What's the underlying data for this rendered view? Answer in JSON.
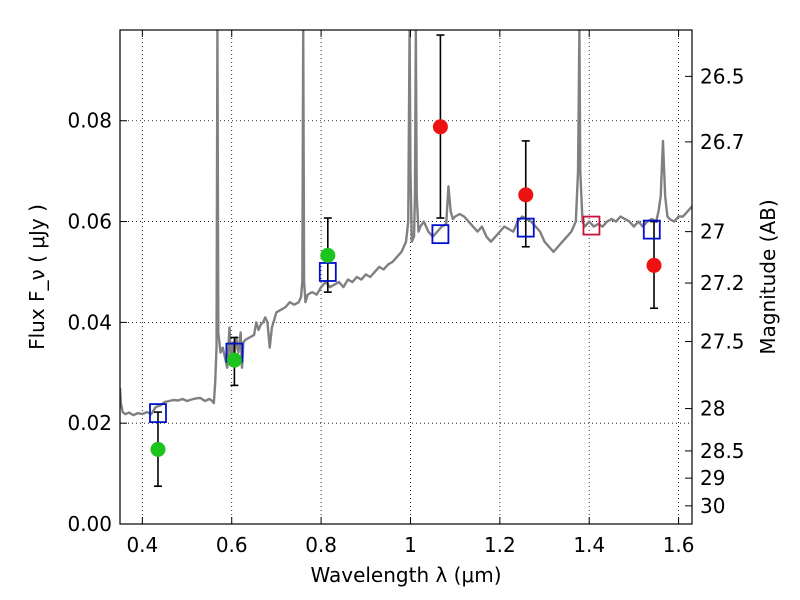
{
  "chart_data": {
    "type": "scatter",
    "xlabel": "Wavelength  λ (μm)",
    "ylabel": "Flux  F_ν ( μJy )",
    "ylabel_right": "Magnitude (AB)",
    "xlim": [
      0.35,
      1.63
    ],
    "ylim": [
      0.0,
      0.098
    ],
    "x_ticks": [
      {
        "value": 0.4,
        "label": "0.4"
      },
      {
        "value": 0.6,
        "label": "0.6"
      },
      {
        "value": 0.8,
        "label": "0.8"
      },
      {
        "value": 1.0,
        "label": "1"
      },
      {
        "value": 1.2,
        "label": "1.2"
      },
      {
        "value": 1.4,
        "label": "1.4"
      },
      {
        "value": 1.6,
        "label": "1.6"
      }
    ],
    "y_ticks": [
      {
        "value": 0.0,
        "label": "0.00"
      },
      {
        "value": 0.02,
        "label": "0.02"
      },
      {
        "value": 0.04,
        "label": "0.04"
      },
      {
        "value": 0.06,
        "label": "0.06"
      },
      {
        "value": 0.08,
        "label": "0.08"
      }
    ],
    "mag_ticks": [
      {
        "value": 0.0888,
        "label": "26.5"
      },
      {
        "value": 0.0758,
        "label": "26.7"
      },
      {
        "value": 0.058,
        "label": "27"
      },
      {
        "value": 0.0478,
        "label": "27.2"
      },
      {
        "value": 0.0362,
        "label": "27.5"
      },
      {
        "value": 0.0229,
        "label": "28"
      },
      {
        "value": 0.0145,
        "label": "28.5"
      },
      {
        "value": 0.0091,
        "label": "29"
      },
      {
        "value": 0.0036,
        "label": "30"
      }
    ],
    "grid": true,
    "colors": {
      "spectrum": "#808080",
      "optical_points": "#1ec41e",
      "nir_points": "#ee1111",
      "model_squares": "#0010cc",
      "highlight_square": "#c8103c",
      "error_bars": "#000000"
    },
    "spectrum": [
      [
        0.35,
        0.027
      ],
      [
        0.352,
        0.024
      ],
      [
        0.356,
        0.0222
      ],
      [
        0.362,
        0.0218
      ],
      [
        0.37,
        0.0221
      ],
      [
        0.38,
        0.0216
      ],
      [
        0.39,
        0.022
      ],
      [
        0.4,
        0.0218
      ],
      [
        0.41,
        0.0222
      ],
      [
        0.42,
        0.0218
      ],
      [
        0.43,
        0.0232
      ],
      [
        0.44,
        0.0235
      ],
      [
        0.45,
        0.0242
      ],
      [
        0.46,
        0.0244
      ],
      [
        0.47,
        0.0246
      ],
      [
        0.48,
        0.0245
      ],
      [
        0.49,
        0.0248
      ],
      [
        0.5,
        0.0244
      ],
      [
        0.51,
        0.0247
      ],
      [
        0.52,
        0.0249
      ],
      [
        0.53,
        0.025
      ],
      [
        0.54,
        0.0244
      ],
      [
        0.55,
        0.0248
      ],
      [
        0.555,
        0.0245
      ],
      [
        0.56,
        0.024
      ],
      [
        0.563,
        0.028
      ],
      [
        0.566,
        0.035
      ],
      [
        0.568,
        0.098
      ],
      [
        0.57,
        0.038
      ],
      [
        0.575,
        0.034
      ],
      [
        0.58,
        0.035
      ],
      [
        0.585,
        0.033
      ],
      [
        0.59,
        0.031
      ],
      [
        0.595,
        0.039
      ],
      [
        0.598,
        0.033
      ],
      [
        0.602,
        0.036
      ],
      [
        0.606,
        0.033
      ],
      [
        0.61,
        0.037
      ],
      [
        0.615,
        0.034
      ],
      [
        0.62,
        0.038
      ],
      [
        0.623,
        0.031
      ],
      [
        0.626,
        0.036
      ],
      [
        0.63,
        0.0365
      ],
      [
        0.64,
        0.037
      ],
      [
        0.65,
        0.0375
      ],
      [
        0.655,
        0.04
      ],
      [
        0.66,
        0.0385
      ],
      [
        0.665,
        0.0395
      ],
      [
        0.67,
        0.04
      ],
      [
        0.675,
        0.041
      ],
      [
        0.68,
        0.04
      ],
      [
        0.685,
        0.035
      ],
      [
        0.69,
        0.039
      ],
      [
        0.695,
        0.0405
      ],
      [
        0.7,
        0.042
      ],
      [
        0.71,
        0.0425
      ],
      [
        0.72,
        0.043
      ],
      [
        0.73,
        0.044
      ],
      [
        0.74,
        0.0435
      ],
      [
        0.75,
        0.044
      ],
      [
        0.755,
        0.045
      ],
      [
        0.758,
        0.048
      ],
      [
        0.76,
        0.098
      ],
      [
        0.762,
        0.048
      ],
      [
        0.765,
        0.044
      ],
      [
        0.77,
        0.0455
      ],
      [
        0.78,
        0.046
      ],
      [
        0.79,
        0.0455
      ],
      [
        0.8,
        0.047
      ],
      [
        0.81,
        0.048
      ],
      [
        0.82,
        0.047
      ],
      [
        0.83,
        0.0475
      ],
      [
        0.84,
        0.048
      ],
      [
        0.85,
        0.047
      ],
      [
        0.86,
        0.0485
      ],
      [
        0.87,
        0.048
      ],
      [
        0.88,
        0.049
      ],
      [
        0.89,
        0.0485
      ],
      [
        0.9,
        0.0495
      ],
      [
        0.91,
        0.049
      ],
      [
        0.92,
        0.05
      ],
      [
        0.93,
        0.051
      ],
      [
        0.94,
        0.0505
      ],
      [
        0.95,
        0.0515
      ],
      [
        0.96,
        0.052
      ],
      [
        0.97,
        0.053
      ],
      [
        0.98,
        0.054
      ],
      [
        0.99,
        0.056
      ],
      [
        0.995,
        0.06
      ],
      [
        0.998,
        0.098
      ],
      [
        1.0,
        0.07
      ],
      [
        1.003,
        0.056
      ],
      [
        1.008,
        0.057
      ],
      [
        1.01,
        0.065
      ],
      [
        1.012,
        0.098
      ],
      [
        1.014,
        0.065
      ],
      [
        1.018,
        0.058
      ],
      [
        1.022,
        0.059
      ],
      [
        1.03,
        0.06
      ],
      [
        1.04,
        0.058
      ],
      [
        1.05,
        0.057
      ],
      [
        1.06,
        0.058
      ],
      [
        1.07,
        0.059
      ],
      [
        1.08,
        0.0595
      ],
      [
        1.085,
        0.067
      ],
      [
        1.09,
        0.062
      ],
      [
        1.095,
        0.0605
      ],
      [
        1.1,
        0.061
      ],
      [
        1.11,
        0.0615
      ],
      [
        1.12,
        0.061
      ],
      [
        1.13,
        0.06
      ],
      [
        1.14,
        0.059
      ],
      [
        1.15,
        0.058
      ],
      [
        1.16,
        0.059
      ],
      [
        1.17,
        0.057
      ],
      [
        1.18,
        0.056
      ],
      [
        1.19,
        0.057
      ],
      [
        1.2,
        0.058
      ],
      [
        1.21,
        0.059
      ],
      [
        1.22,
        0.0585
      ],
      [
        1.23,
        0.058
      ],
      [
        1.24,
        0.06
      ],
      [
        1.25,
        0.061
      ],
      [
        1.26,
        0.0605
      ],
      [
        1.27,
        0.06
      ],
      [
        1.28,
        0.059
      ],
      [
        1.29,
        0.058
      ],
      [
        1.3,
        0.056
      ],
      [
        1.31,
        0.055
      ],
      [
        1.32,
        0.054
      ],
      [
        1.33,
        0.055
      ],
      [
        1.34,
        0.056
      ],
      [
        1.35,
        0.057
      ],
      [
        1.36,
        0.058
      ],
      [
        1.37,
        0.06
      ],
      [
        1.375,
        0.07
      ],
      [
        1.378,
        0.098
      ],
      [
        1.38,
        0.07
      ],
      [
        1.385,
        0.06
      ],
      [
        1.39,
        0.059
      ],
      [
        1.4,
        0.06
      ],
      [
        1.41,
        0.059
      ],
      [
        1.42,
        0.0595
      ],
      [
        1.43,
        0.059
      ],
      [
        1.44,
        0.06
      ],
      [
        1.45,
        0.0605
      ],
      [
        1.46,
        0.06
      ],
      [
        1.47,
        0.061
      ],
      [
        1.48,
        0.0605
      ],
      [
        1.49,
        0.06
      ],
      [
        1.5,
        0.059
      ],
      [
        1.51,
        0.06
      ],
      [
        1.52,
        0.059
      ],
      [
        1.53,
        0.06
      ],
      [
        1.54,
        0.0605
      ],
      [
        1.55,
        0.06
      ],
      [
        1.555,
        0.062
      ],
      [
        1.56,
        0.065
      ],
      [
        1.565,
        0.076
      ],
      [
        1.57,
        0.065
      ],
      [
        1.575,
        0.061
      ],
      [
        1.58,
        0.0605
      ],
      [
        1.59,
        0.06
      ],
      [
        1.6,
        0.061
      ],
      [
        1.61,
        0.061
      ],
      [
        1.62,
        0.062
      ],
      [
        1.63,
        0.063
      ]
    ],
    "optical_points": [
      {
        "x": 0.435,
        "y": 0.0148,
        "err_low": 0.0075,
        "err_high": 0.0222
      },
      {
        "x": 0.606,
        "y": 0.0325,
        "err_low": 0.0275,
        "err_high": 0.037
      },
      {
        "x": 0.815,
        "y": 0.0533,
        "err_low": 0.046,
        "err_high": 0.0607
      }
    ],
    "nir_points": [
      {
        "x": 1.067,
        "y": 0.0788,
        "err_low": 0.0607,
        "err_high": 0.097
      },
      {
        "x": 1.258,
        "y": 0.0653,
        "err_low": 0.055,
        "err_high": 0.076
      },
      {
        "x": 1.545,
        "y": 0.0513,
        "err_low": 0.0428,
        "err_high": 0.06
      }
    ],
    "model_squares": [
      {
        "x": 0.435,
        "y": 0.022
      },
      {
        "x": 0.606,
        "y": 0.034
      },
      {
        "x": 0.815,
        "y": 0.05
      },
      {
        "x": 1.067,
        "y": 0.0575
      },
      {
        "x": 1.258,
        "y": 0.0588
      },
      {
        "x": 1.54,
        "y": 0.0584
      }
    ],
    "highlight_square": {
      "x": 1.405,
      "y": 0.0592
    }
  }
}
